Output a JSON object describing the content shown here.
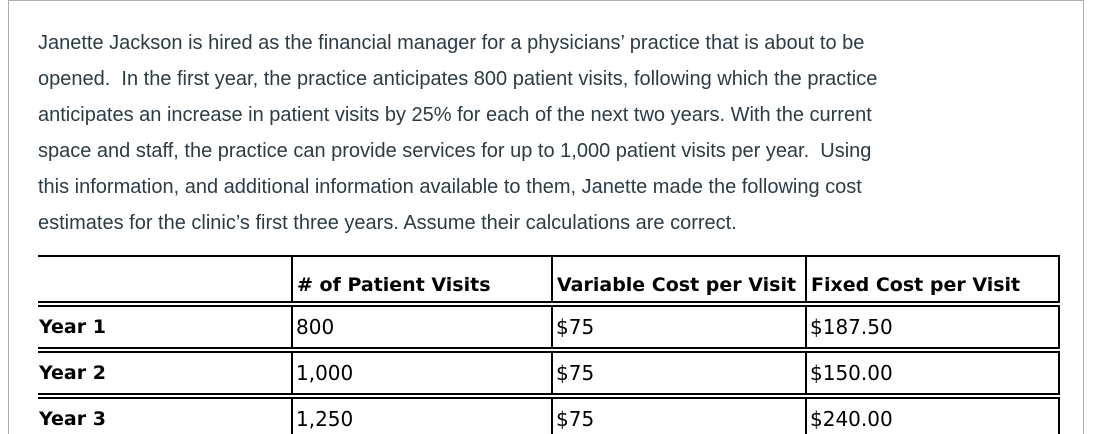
{
  "question": {
    "paragraph_lines": [
      "Janette Jackson is hired as the financial manager for a physicians’ practice that is about to be",
      "opened.  In the first year, the practice anticipates 800 patient visits, following which the practice",
      "anticipates an increase in patient visits by 25% for each of the next two years. With the current",
      "space and staff, the practice can provide services for up to 1,000 patient visits per year.  Using",
      "this information, and additional information available to them, Janette made the following cost",
      "estimates for the clinic’s first three years. Assume their calculations are correct."
    ]
  },
  "table": {
    "headers": [
      "",
      "# of Patient Visits",
      "Variable Cost per Visit",
      "Fixed Cost per Visit"
    ],
    "rows": [
      {
        "label": "Year 1",
        "visits": "800",
        "variable_cost": "$75",
        "fixed_cost": "$187.50"
      },
      {
        "label": "Year 2",
        "visits": "1,000",
        "variable_cost": "$75",
        "fixed_cost": "$150.00"
      },
      {
        "label": "Year 3",
        "visits": "1,250",
        "variable_cost": "$75",
        "fixed_cost": "$240.00"
      }
    ]
  },
  "colors": {
    "paragraph_text": "#2d3b45",
    "table_text": "#000000",
    "table_border": "#000000",
    "container_border": "#a8b0b6"
  }
}
